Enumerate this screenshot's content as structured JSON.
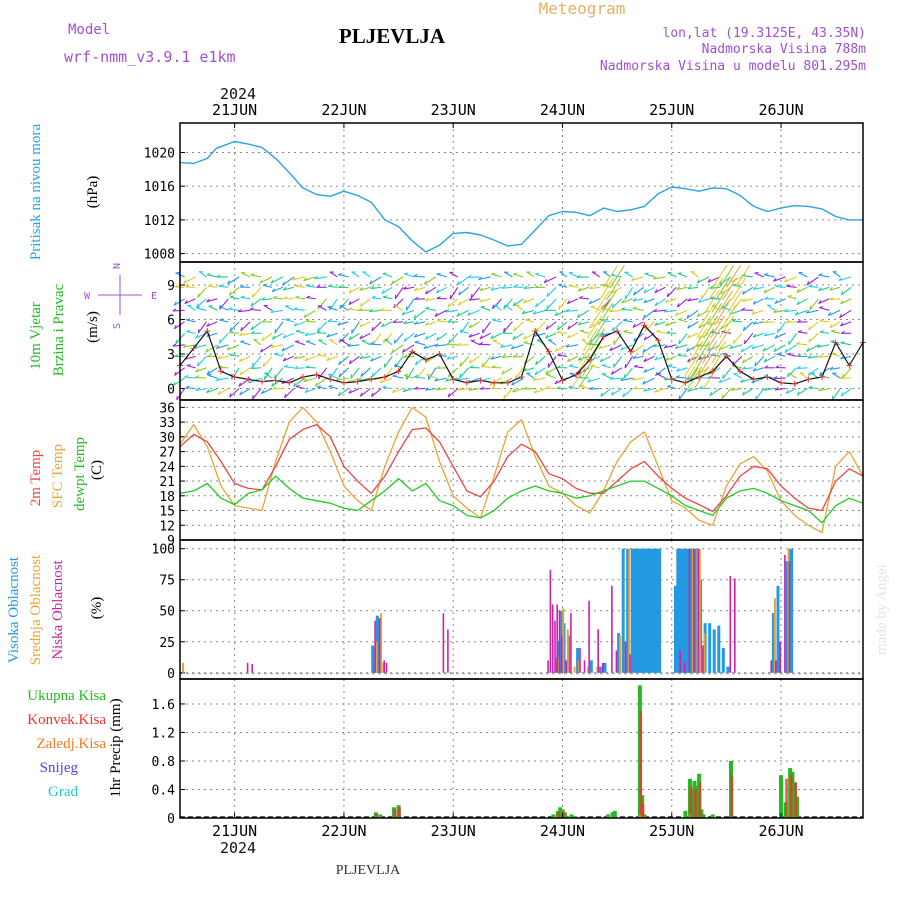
{
  "header": {
    "model_label": "Model",
    "model_name": "wrf-nmm_v3.9.1  e1km",
    "title": "PLJEVLJA",
    "product": "Meteogram",
    "coords": "lon,lat (19.3125E, 43.35N)",
    "elevation": "Nadmorska Visina 788m",
    "model_elevation": "Nadmorska Visina u modelu 801.295m",
    "watermark": "made by Angel",
    "footer_title": "PLJEVLJA"
  },
  "time_axis": {
    "year": "2024",
    "day_labels": [
      "21JUN",
      "22JUN",
      "23JUN",
      "24JUN",
      "25JUN",
      "26JUN"
    ],
    "start_hour": -12,
    "end_hour": 138,
    "day_hours": [
      0,
      24,
      48,
      72,
      96,
      120
    ]
  },
  "colors": {
    "pressure": "#2aa4e0",
    "temp2m": "#ee4444",
    "sfc_temp": "#e8a535",
    "dewpt": "#22cc22",
    "high_cloud": "#2299e0",
    "mid_cloud": "#e8a535",
    "low_cloud": "#cc22aa",
    "total_precip": "#22bb22",
    "conv_precip": "#ee3333",
    "frz_precip": "#f07820",
    "snow": "#4444ee",
    "graupel": "#22cccc",
    "wind_line": "#111111",
    "gust_marker": "#ee3333"
  },
  "panel_labels": {
    "pressure": [
      "Pritisak na nivou mora",
      "(hPa)"
    ],
    "wind": [
      "10m Vjetar",
      "Brzina i Pravac",
      "(m/s)"
    ],
    "compass": [
      "N",
      "S",
      "W",
      "E"
    ],
    "temp": [
      "2m Temp",
      "SFC Temp",
      "dewpt Temp",
      "(C)"
    ],
    "cloud": [
      "Visoka Oblacnost",
      "Srednja Oblacnost",
      "Niska Oblacnost",
      "(%)"
    ],
    "precip_legend": [
      "Ukupna Kisa",
      "Konvek.Kisa",
      "Zaledj.Kisa",
      "Snijeg",
      "Grad"
    ],
    "precip_unit": "1hr Precip (mm)"
  },
  "chart_data": [
    {
      "type": "line",
      "title": "Pritisak na nivou mora",
      "ylabel": "(hPa)",
      "ylim": [
        1007,
        1023.5
      ],
      "yticks": [
        1008,
        1012,
        1016,
        1020
      ],
      "grid": true,
      "series": [
        {
          "name": "Pritisak na nivou mora",
          "x": [
            -12,
            -9,
            -6,
            -4,
            0,
            3,
            6,
            9,
            12,
            15,
            18,
            21,
            24,
            27,
            30,
            33,
            36,
            39,
            42,
            45,
            48,
            51,
            54,
            57,
            60,
            63,
            66,
            69,
            72,
            75,
            78,
            81,
            84,
            87,
            90,
            93,
            96,
            99,
            102,
            105,
            108,
            111,
            114,
            117,
            120,
            123,
            126,
            129,
            132,
            135,
            138
          ],
          "values": [
            1018.8,
            1018.7,
            1019.3,
            1020.5,
            1021.3,
            1021.0,
            1020.6,
            1019.3,
            1017.6,
            1015.8,
            1015.0,
            1014.8,
            1015.4,
            1014.9,
            1014.1,
            1012.0,
            1011.2,
            1009.5,
            1008.2,
            1009.0,
            1010.4,
            1010.5,
            1010.2,
            1009.6,
            1008.9,
            1009.1,
            1010.8,
            1012.5,
            1013.0,
            1012.9,
            1012.5,
            1013.4,
            1013.0,
            1013.2,
            1013.6,
            1015.1,
            1015.9,
            1015.7,
            1015.4,
            1015.8,
            1015.7,
            1014.9,
            1013.6,
            1013.0,
            1013.4,
            1013.7,
            1013.6,
            1013.3,
            1012.4,
            1012.0,
            1012.0
          ]
        }
      ]
    },
    {
      "type": "line",
      "title": "10m Vjetar",
      "ylabel": "(m/s)",
      "ylim": [
        -1,
        11
      ],
      "yticks": [
        0,
        3,
        6,
        9
      ],
      "grid": true,
      "series": [
        {
          "name": "Brzina i Pravac",
          "x": [
            -12,
            -9,
            -6,
            -3,
            0,
            3,
            6,
            9,
            12,
            15,
            18,
            21,
            24,
            27,
            30,
            33,
            36,
            39,
            42,
            45,
            48,
            51,
            54,
            57,
            60,
            63,
            66,
            69,
            72,
            75,
            78,
            81,
            84,
            87,
            90,
            93,
            96,
            99,
            102,
            105,
            108,
            111,
            114,
            117,
            120,
            123,
            126,
            129,
            132,
            135,
            138
          ],
          "values": [
            2.0,
            3.5,
            5.0,
            1.5,
            1.0,
            0.8,
            0.6,
            0.7,
            0.5,
            1.0,
            1.2,
            0.8,
            0.5,
            0.6,
            0.8,
            1.0,
            1.5,
            3.2,
            2.5,
            3.0,
            0.8,
            0.5,
            0.7,
            0.5,
            0.5,
            1.0,
            5.0,
            3.2,
            0.7,
            1.2,
            2.5,
            4.5,
            5.0,
            3.2,
            5.5,
            4.2,
            0.8,
            0.5,
            1.0,
            1.5,
            2.8,
            1.5,
            0.8,
            1.0,
            0.5,
            0.4,
            0.8,
            1.0,
            4.0,
            2.0,
            4.0
          ]
        }
      ]
    },
    {
      "type": "line",
      "title": "2m Temp",
      "ylabel": "(C)",
      "ylim": [
        9,
        37.5
      ],
      "yticks": [
        9,
        12,
        15,
        18,
        21,
        24,
        27,
        30,
        33,
        36
      ],
      "grid": true,
      "series": [
        {
          "name": "2m Temp",
          "x": [
            -12,
            -9,
            -6,
            -3,
            0,
            3,
            6,
            9,
            12,
            15,
            18,
            21,
            24,
            27,
            30,
            33,
            36,
            39,
            42,
            45,
            48,
            51,
            54,
            57,
            60,
            63,
            66,
            69,
            72,
            75,
            78,
            81,
            84,
            87,
            90,
            93,
            96,
            99,
            102,
            105,
            108,
            111,
            114,
            117,
            120,
            123,
            126,
            129,
            132,
            135,
            138
          ],
          "values": [
            28,
            30.5,
            29,
            25,
            20.5,
            19.5,
            19.2,
            24,
            29.5,
            31.5,
            32.5,
            30,
            24,
            21,
            18.5,
            22,
            27,
            31.5,
            31.8,
            29,
            24,
            19,
            17.8,
            21,
            26,
            28.5,
            27,
            22.5,
            21.5,
            19.5,
            18.5,
            18.5,
            21,
            23.5,
            25,
            22,
            19.5,
            17.5,
            16.2,
            14.8,
            18,
            22,
            24,
            23.5,
            20,
            17.5,
            15.5,
            15.0,
            21,
            23.5,
            22
          ]
        },
        {
          "name": "SFC Temp",
          "x": [
            -12,
            -9,
            -6,
            -3,
            0,
            3,
            6,
            9,
            12,
            15,
            18,
            21,
            24,
            27,
            30,
            33,
            36,
            39,
            42,
            45,
            48,
            51,
            54,
            57,
            60,
            63,
            66,
            69,
            72,
            75,
            78,
            81,
            84,
            87,
            90,
            93,
            96,
            99,
            102,
            105,
            108,
            111,
            114,
            117,
            120,
            123,
            126,
            129,
            132,
            135,
            138
          ],
          "values": [
            28.5,
            32.5,
            28,
            20,
            16,
            15.5,
            15,
            25,
            33,
            36,
            33,
            27,
            20,
            17,
            15,
            24,
            31,
            36,
            34,
            25,
            18,
            15.5,
            13.5,
            22,
            31,
            33.5,
            26,
            20,
            18.5,
            16,
            14.5,
            19,
            25,
            29,
            31,
            24,
            17,
            15.5,
            13,
            12,
            20,
            24.5,
            26,
            23,
            17,
            14,
            12,
            10.5,
            24,
            27,
            22
          ]
        },
        {
          "name": "dewpt Temp",
          "x": [
            -12,
            -9,
            -6,
            -3,
            0,
            3,
            6,
            9,
            12,
            15,
            18,
            21,
            24,
            27,
            30,
            33,
            36,
            39,
            42,
            45,
            48,
            51,
            54,
            57,
            60,
            63,
            66,
            69,
            72,
            75,
            78,
            81,
            84,
            87,
            90,
            93,
            96,
            99,
            102,
            105,
            108,
            111,
            114,
            117,
            120,
            123,
            126,
            129,
            132,
            135,
            138
          ],
          "values": [
            18.5,
            19,
            20.5,
            17.5,
            16.2,
            18.5,
            19.2,
            22,
            19.5,
            17.5,
            17,
            16.5,
            15.5,
            15,
            17,
            19,
            21.5,
            19,
            20.5,
            17,
            16,
            14,
            13.5,
            15,
            17.5,
            19,
            20,
            19,
            18.5,
            17.5,
            18,
            19,
            20,
            21,
            21,
            19.5,
            18,
            16,
            15,
            14,
            17.5,
            19,
            19.5,
            18.5,
            17,
            16,
            15,
            12.5,
            16,
            17.5,
            16.5
          ]
        }
      ]
    },
    {
      "type": "bar",
      "title": "Oblacnost",
      "ylabel": "(%)",
      "ylim": [
        -5,
        107
      ],
      "yticks": [
        0,
        25,
        50,
        75,
        100
      ],
      "grid": true,
      "series": [
        {
          "name": "Visoka Oblacnost",
          "x": [
            30,
            30.5,
            31,
            31.5,
            70.5,
            71,
            71.5,
            72,
            73,
            75,
            78,
            80,
            81,
            84,
            85,
            86,
            87,
            87.5,
            88,
            88.5,
            89,
            89.5,
            90,
            90.5,
            91,
            91.5,
            92,
            92.5,
            93,
            96.5,
            97,
            97.5,
            98,
            98.5,
            99,
            99.5,
            100,
            100.5,
            101,
            101.5,
            102,
            103,
            104,
            105,
            106,
            107,
            108,
            118,
            119,
            121,
            121.5,
            122
          ],
          "values": [
            22,
            20,
            46,
            44,
            12,
            25,
            50,
            40,
            30,
            20,
            10,
            5,
            8,
            32,
            100,
            100,
            100,
            100,
            100,
            100,
            100,
            100,
            100,
            100,
            100,
            100,
            100,
            100,
            100,
            70,
            100,
            100,
            100,
            100,
            100,
            100,
            100,
            100,
            100,
            100,
            75,
            40,
            40,
            35,
            38,
            20,
            5,
            48,
            70,
            90,
            100,
            100
          ]
        },
        {
          "name": "Srednja Oblacnost",
          "x": [
            -12,
            30.5,
            31.5,
            32,
            70.5,
            71.5,
            72.5,
            74,
            75,
            77,
            79,
            84,
            86,
            100,
            101,
            101.5,
            102.5,
            118,
            121
          ],
          "values": [
            8,
            25,
            48,
            8,
            12,
            52,
            35,
            5,
            10,
            5,
            5,
            30,
            100,
            100,
            100,
            100,
            32,
            60,
            100
          ]
        },
        {
          "name": "Niska Oblacnost",
          "x": [
            3,
            4,
            31,
            32,
            33,
            33.5,
            46,
            47,
            69,
            69.5,
            70,
            70.5,
            71,
            71.5,
            72,
            73,
            74,
            76,
            77,
            78,
            80,
            81,
            83,
            84,
            86,
            87,
            98,
            99,
            100,
            101,
            102,
            103,
            109,
            110,
            118,
            119,
            120,
            121,
            122
          ],
          "values": [
            8,
            7,
            42,
            44,
            10,
            8,
            48,
            35,
            10,
            83,
            55,
            42,
            55,
            50,
            30,
            10,
            48,
            20,
            10,
            58,
            35,
            8,
            70,
            18,
            25,
            15,
            18,
            8,
            100,
            100,
            100,
            22,
            78,
            76,
            10,
            10,
            25,
            95,
            90
          ]
        }
      ]
    },
    {
      "type": "bar",
      "title": "1hr Precip",
      "ylabel": "1hr Precip (mm)",
      "ylim": [
        0,
        1.95
      ],
      "yticks": [
        0,
        0.4,
        0.8,
        1.2,
        1.6
      ],
      "grid": true,
      "series": [
        {
          "name": "Ukupna Kisa",
          "x": [
            31,
            32,
            35,
            36,
            70,
            71,
            71.5,
            72,
            72.5,
            73,
            74,
            75,
            82,
            83,
            83.5,
            89,
            89.5,
            90,
            99,
            100,
            100.5,
            101,
            101.5,
            102,
            102.5,
            103,
            105,
            109,
            120,
            121,
            122,
            122.5,
            123,
            123.5
          ],
          "values": [
            0.08,
            0.05,
            0.15,
            0.18,
            0.05,
            0.1,
            0.15,
            0.12,
            0.08,
            0.03,
            0.05,
            0.02,
            0.05,
            0.08,
            0.1,
            1.86,
            0.32,
            0.05,
            0.1,
            0.55,
            0.4,
            0.52,
            0.45,
            0.62,
            0.12,
            0.05,
            0.05,
            0.8,
            0.6,
            0.22,
            0.7,
            0.65,
            0.5,
            0.3
          ]
        },
        {
          "name": "Konvek.Kisa",
          "x": [
            31,
            35,
            36,
            71,
            72,
            89,
            89.5,
            100,
            101,
            102,
            109,
            121,
            122,
            123
          ],
          "values": [
            0.06,
            0.12,
            0.15,
            0.08,
            0.1,
            1.5,
            0.2,
            0.45,
            0.4,
            0.5,
            0.6,
            0.55,
            0.6,
            0.5
          ]
        },
        {
          "name": "Zaledj.Kisa",
          "x": [
            89,
            100
          ],
          "values": [
            0.05,
            0.05
          ]
        },
        {
          "name": "Snijeg",
          "x": [],
          "values": []
        },
        {
          "name": "Grad",
          "x": [],
          "values": []
        }
      ]
    }
  ]
}
